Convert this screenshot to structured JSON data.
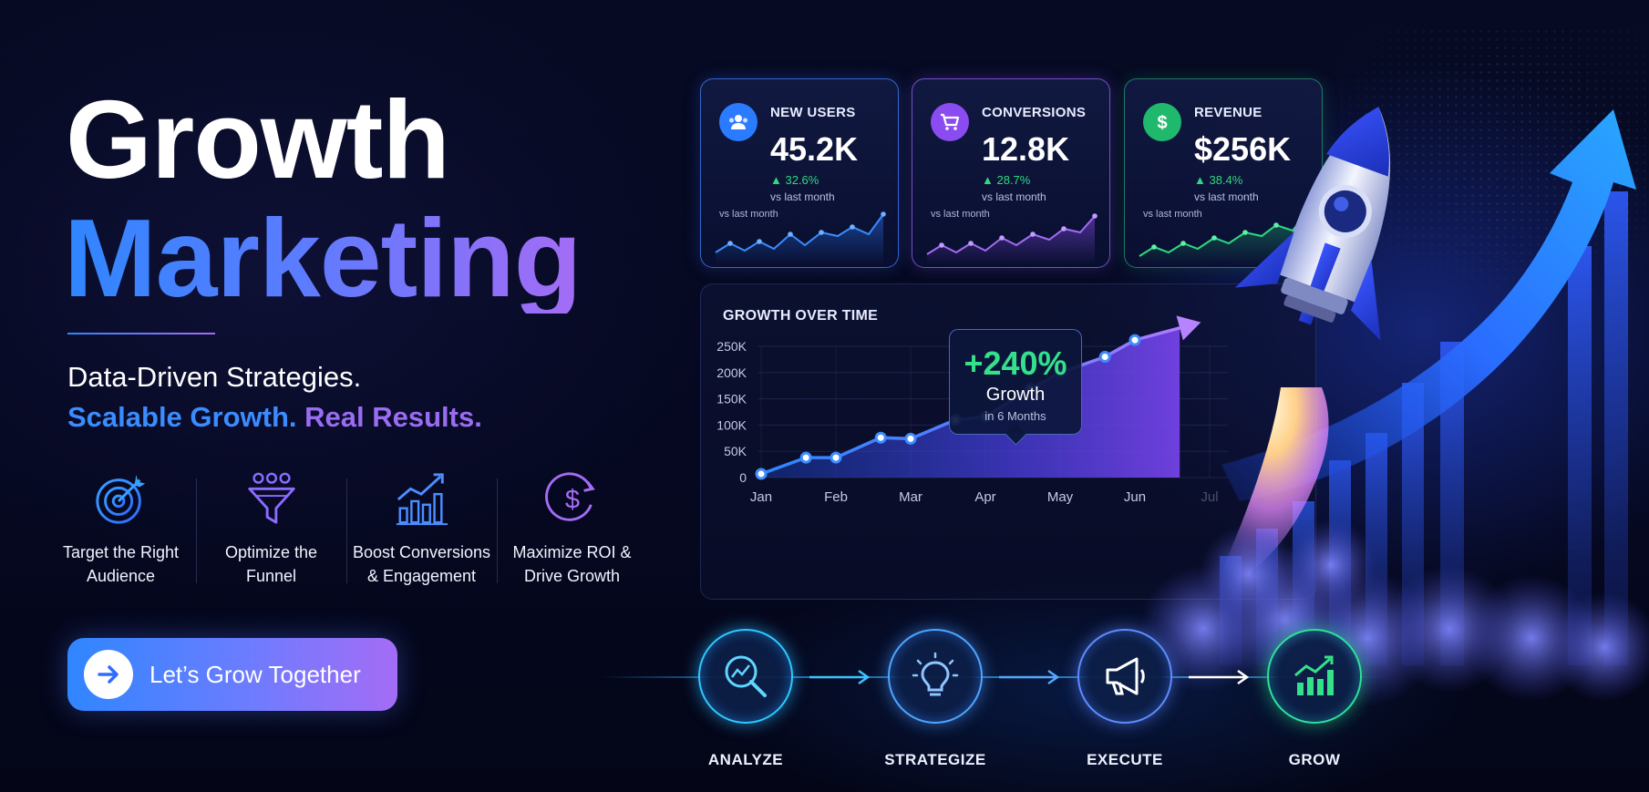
{
  "hero": {
    "title_line1": "Growth",
    "title_line2": "Marketing",
    "tagline_line1": "Data-Driven Strategies.",
    "tagline_line2_a": "Scalable Growth.",
    "tagline_line2_b": "Real Results."
  },
  "features": [
    {
      "icon": "target-icon",
      "label_1": "Target the Right",
      "label_2": "Audience"
    },
    {
      "icon": "funnel-icon",
      "label_1": "Optimize the",
      "label_2": "Funnel"
    },
    {
      "icon": "bar-chart-up-icon",
      "label_1": "Boost Conversions",
      "label_2": "& Engagement"
    },
    {
      "icon": "dollar-circle-icon",
      "label_1": "Maximize ROI &",
      "label_2": "Drive Growth"
    }
  ],
  "cta": {
    "label": "Let’s Grow Together",
    "icon": "arrow-right-icon"
  },
  "stats": [
    {
      "label": "NEW USERS",
      "value": "45.2K",
      "change": "▲ 32.6%",
      "compare": "vs last month",
      "spark_label": "vs last month",
      "icon": "users-icon",
      "color": "#2a7bff"
    },
    {
      "label": "CONVERSIONS",
      "value": "12.8K",
      "change": "▲ 28.7%",
      "compare": "vs last month",
      "spark_label": "vs last month",
      "icon": "cart-icon",
      "color": "#8a4cf0"
    },
    {
      "label": "REVENUE",
      "value": "$256K",
      "change": "▲ 38.4%",
      "compare": "vs last month",
      "spark_label": "vs last month",
      "icon": "dollar-icon",
      "color": "#1fb86d"
    }
  ],
  "growth_chart": {
    "title": "GROWTH OVER TIME",
    "callout_value": "+240%",
    "callout_label": "Growth",
    "callout_sub": "in 6 Months"
  },
  "chart_data": {
    "type": "area",
    "title": "GROWTH OVER TIME",
    "categories": [
      "Jan",
      "Feb",
      "Mar",
      "Apr",
      "May",
      "Jun",
      "Jul"
    ],
    "y_ticks": [
      "0",
      "50K",
      "100K",
      "150K",
      "200K",
      "250K"
    ],
    "ylim": [
      0,
      250000
    ],
    "x": [
      0,
      0.6,
      1.0,
      1.6,
      2.0,
      2.6,
      3.0,
      3.6,
      4.0,
      4.6,
      5.0,
      5.6
    ],
    "values": [
      7000,
      38000,
      38000,
      76000,
      74000,
      110000,
      116000,
      169000,
      200000,
      230000,
      262000,
      285000
    ],
    "grid": true,
    "legend": "none"
  },
  "process": [
    {
      "label": "ANALYZE",
      "icon": "magnifier-chart-icon"
    },
    {
      "label": "STRATEGIZE",
      "icon": "lightbulb-icon"
    },
    {
      "label": "EXECUTE",
      "icon": "megaphone-icon"
    },
    {
      "label": "GROW",
      "icon": "growth-bars-icon"
    }
  ],
  "colors": {
    "background": "#05081d",
    "blue": "#2f86ff",
    "purple": "#a46cf5",
    "green": "#2fd97f",
    "cyan": "#2ec9ff"
  }
}
